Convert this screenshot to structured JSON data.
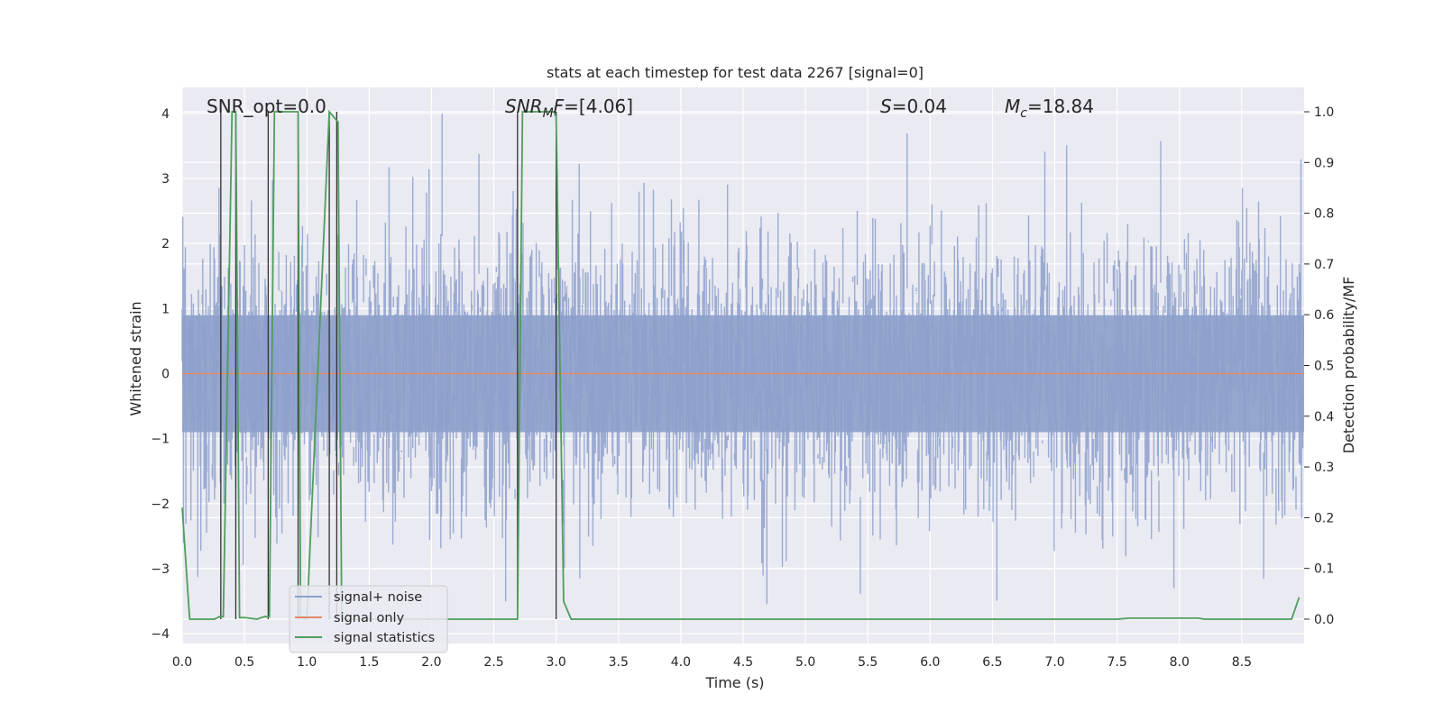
{
  "chart_data": {
    "type": "line",
    "title": "stats at each timestep for test data 2267 [signal=0]",
    "xlabel": "Time (s)",
    "ylabel": "Whitened strain",
    "y2label": "Detection probability/MF",
    "xlim": [
      0.0,
      9.0
    ],
    "ylim": [
      -4.15,
      4.4
    ],
    "y2lim": [
      -0.048,
      1.048
    ],
    "x_ticks": [
      "0.0",
      "0.5",
      "1.0",
      "1.5",
      "2.0",
      "2.5",
      "3.0",
      "3.5",
      "4.0",
      "4.5",
      "5.0",
      "5.5",
      "6.0",
      "6.5",
      "7.0",
      "7.5",
      "8.0",
      "8.5"
    ],
    "y_ticks": [
      "4",
      "3",
      "2",
      "1",
      "0",
      "−1",
      "−2",
      "−3",
      "−4"
    ],
    "y2_ticks": [
      "1.0",
      "0.9",
      "0.8",
      "0.7",
      "0.6",
      "0.5",
      "0.4",
      "0.3",
      "0.2",
      "0.1",
      "0.0"
    ],
    "grid": true,
    "legend_position": "lower-left",
    "annotations": {
      "snr_opt": "SNR_opt=0.0",
      "snr_mf": "=[4.06]",
      "s_stat": "=0.04",
      "mc": "=18.84"
    },
    "series": [
      {
        "name": "signal+ noise",
        "color": "#8da0cb",
        "description_kind": "noise band",
        "band_center": 0.0,
        "band_sigma": 1.0,
        "peak_max": 4.0,
        "peak_min": -3.7
      },
      {
        "name": "signal only",
        "color": "#e08a6a",
        "x": [
          0.0,
          9.0
        ],
        "y": [
          0.0,
          0.0
        ]
      },
      {
        "name": "signal statistics",
        "color": "#4f9e5b",
        "axis": "right",
        "x": [
          0.0,
          0.06,
          0.26,
          0.3,
          0.33,
          0.4,
          0.43,
          0.46,
          0.5,
          0.6,
          0.66,
          0.7,
          0.74,
          0.93,
          0.95,
          1.0,
          1.18,
          1.25,
          1.28,
          1.3,
          2.0,
          2.69,
          2.73,
          2.98,
          3.0,
          3.06,
          3.12,
          4.0,
          7.5,
          7.6,
          8.15,
          8.2,
          8.9,
          8.96
        ],
        "y": [
          0.22,
          0.0,
          0.0,
          0.005,
          0.005,
          1.0,
          1.0,
          0.003,
          0.003,
          0.0,
          0.005,
          0.005,
          1.0,
          1.0,
          0.003,
          0.0,
          1.0,
          0.98,
          0.0,
          0.0,
          0.0,
          0.0,
          1.0,
          1.0,
          0.99,
          0.035,
          0.0,
          0.0,
          0.0,
          0.002,
          0.002,
          0.0,
          0.0,
          0.043
        ]
      }
    ],
    "markers": {
      "color": "#333333",
      "x": [
        0.31,
        0.43,
        0.69,
        0.93,
        1.18,
        1.24,
        2.69,
        3.0
      ]
    }
  }
}
